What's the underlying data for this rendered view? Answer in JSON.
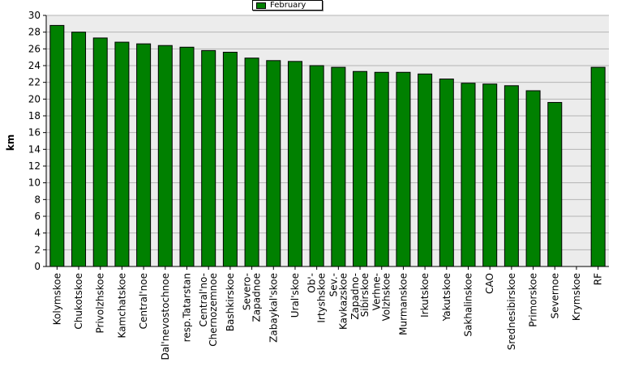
{
  "chart_data": {
    "type": "bar",
    "title": "",
    "xlabel": "",
    "ylabel": "km",
    "ylim": [
      0,
      30
    ],
    "ytick_step": 2,
    "grid": true,
    "legend": {
      "position": "top-center",
      "entries": [
        "February"
      ]
    },
    "categories": [
      "Kolymskoe",
      "Chukotskoe",
      "Privolzhskoe",
      "Kamchatskoe",
      "Central'noe",
      "Dal'nevostochnoe",
      "resp.Tatarstan",
      "Central'no-\nChernozemnoe",
      "Bashkirskoe",
      "Severo-\nZapadnoe",
      "Zabaykal'skoe",
      "Ural'skoe",
      "Ob'-\nIrtyshskoe",
      "Sev.-\nKavkazskoe",
      "Zapadno-\nSibirskoe",
      "Verhne-\nVolzhskoe",
      "Murmanskoe",
      "Irkutskoe",
      "Yakutskoe",
      "Sakhalinskoe",
      "CAO",
      "Srednesibirskoe",
      "Primorskoe",
      "Severnoe",
      "Krymskoe",
      "RF"
    ],
    "series": [
      {
        "name": "February",
        "color": "#008000",
        "values": [
          28.8,
          28.0,
          27.3,
          26.8,
          26.6,
          26.4,
          26.2,
          25.8,
          25.6,
          24.9,
          24.6,
          24.5,
          24.0,
          23.8,
          23.3,
          23.2,
          23.2,
          23.0,
          22.4,
          21.9,
          21.8,
          21.6,
          21.0,
          19.6,
          0,
          23.8
        ]
      }
    ]
  },
  "colors": {
    "bar": "#008000",
    "bar_border": "#000000",
    "plot_bg": "#ececec",
    "grid": "#b4b4b4",
    "axis": "#000000"
  }
}
